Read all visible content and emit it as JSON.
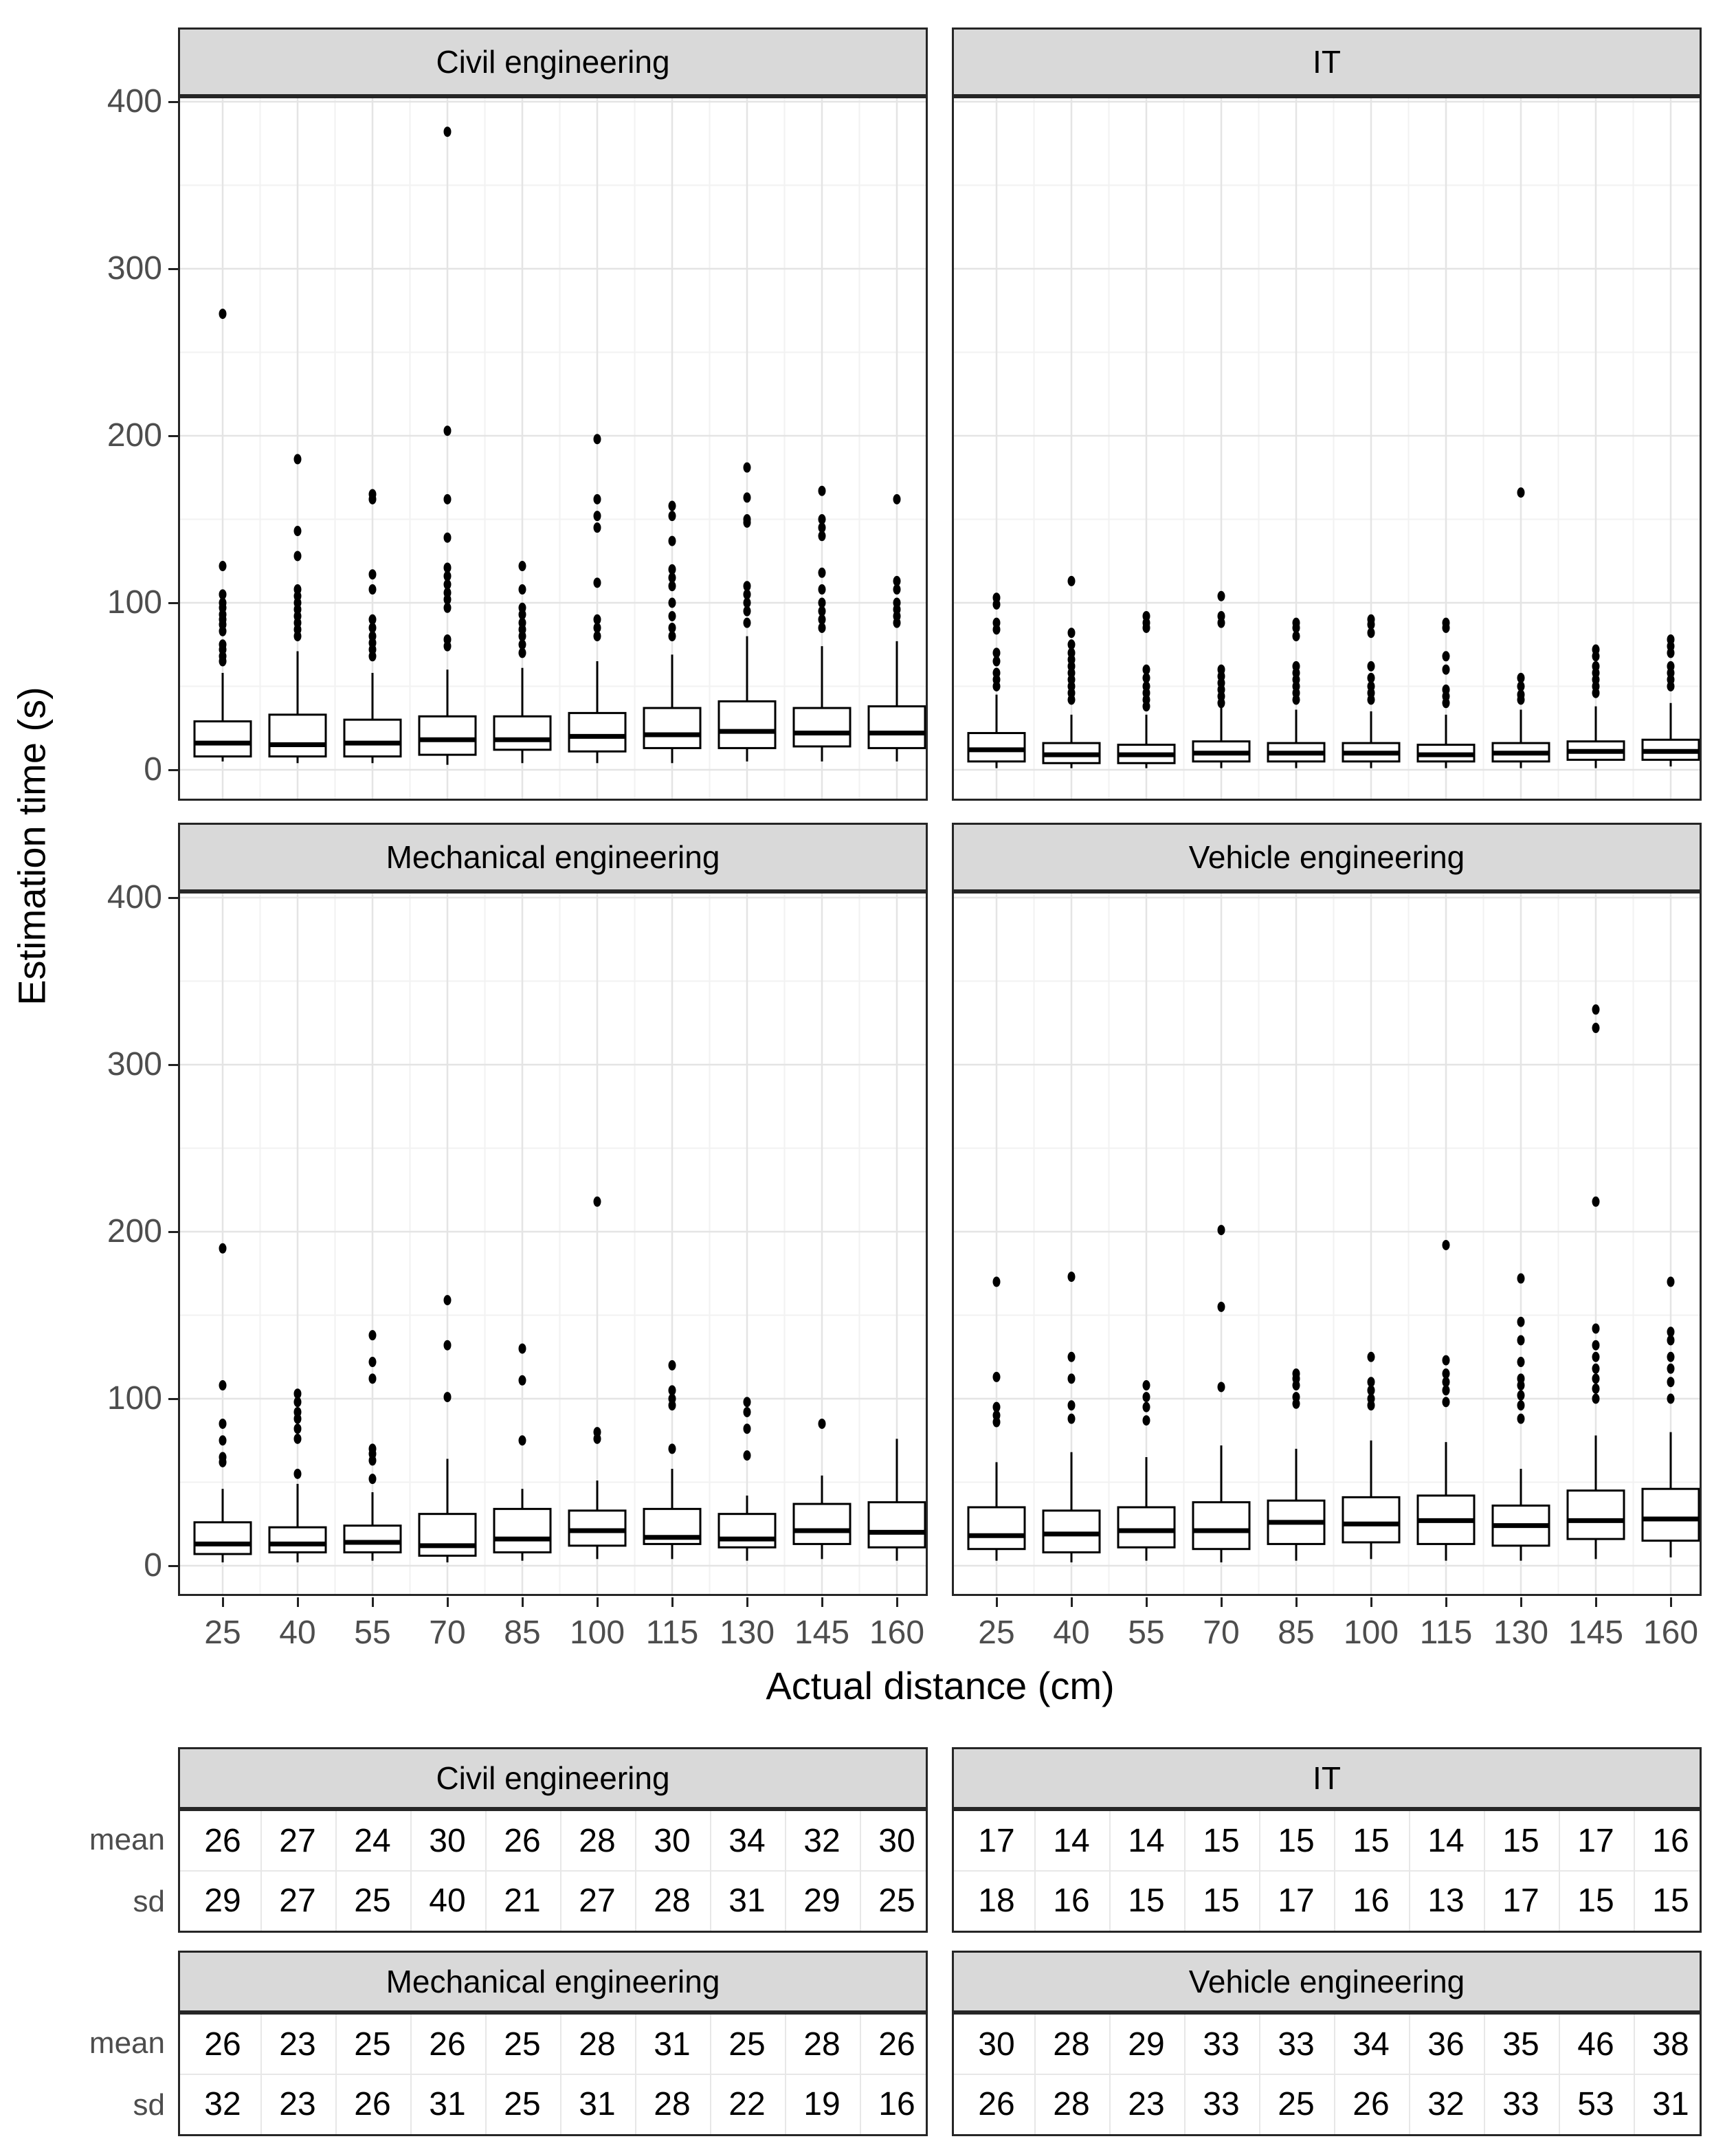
{
  "figure": {
    "y_axis_title": "Estimation time (s)",
    "x_axis_title": "Actual distance (cm)",
    "y_tick_labels": [
      "0",
      "100",
      "200",
      "300",
      "400"
    ],
    "x_tick_labels": [
      "25",
      "40",
      "55",
      "70",
      "85",
      "100",
      "115",
      "130",
      "145",
      "160"
    ]
  },
  "colors": {
    "strip_fill": "#d9d9d9",
    "panel_border": "#262626",
    "grid_major": "#e4e4e4",
    "grid_minor": "#f2f2f2",
    "tick_text": "#4d4d4d",
    "box_stroke": "#000000",
    "text": "#000000"
  },
  "chart_data": {
    "type": "boxplot",
    "facet_layout": [
      "Civil engineering",
      "IT",
      "Mechanical engineering",
      "Vehicle engineering"
    ],
    "x": [
      25,
      40,
      55,
      70,
      85,
      100,
      115,
      130,
      145,
      160
    ],
    "xlabel": "Actual distance (cm)",
    "ylabel": "Estimation time (s)",
    "ylim": [
      0,
      400
    ],
    "y_major_breaks": [
      0,
      100,
      200,
      300,
      400
    ],
    "y_minor_breaks": [
      50,
      150,
      250,
      350
    ],
    "grid": "on",
    "legend": "none",
    "panels": [
      {
        "title": "Civil engineering",
        "boxes": [
          {
            "x": 25,
            "q1": 8,
            "median": 16,
            "q3": 29,
            "whisker_low": 5,
            "whisker_high": 58,
            "outliers": [
              273,
              122,
              105,
              100,
              97,
              93,
              90,
              87,
              83,
              75,
              72,
              68,
              65
            ]
          },
          {
            "x": 40,
            "q1": 8,
            "median": 15,
            "q3": 33,
            "whisker_low": 4,
            "whisker_high": 71,
            "outliers": [
              186,
              143,
              128,
              108,
              104,
              100,
              96,
              92,
              88,
              84,
              80
            ]
          },
          {
            "x": 55,
            "q1": 8,
            "median": 16,
            "q3": 30,
            "whisker_low": 4,
            "whisker_high": 58,
            "outliers": [
              165,
              162,
              117,
              108,
              90,
              85,
              80,
              76,
              72,
              68
            ]
          },
          {
            "x": 70,
            "q1": 9,
            "median": 18,
            "q3": 32,
            "whisker_low": 3,
            "whisker_high": 60,
            "outliers": [
              382,
              203,
              162,
              139,
              121,
              116,
              111,
              106,
              102,
              97,
              78,
              74
            ]
          },
          {
            "x": 85,
            "q1": 12,
            "median": 18,
            "q3": 32,
            "whisker_low": 4,
            "whisker_high": 61,
            "outliers": [
              122,
              108,
              97,
              93,
              88,
              84,
              80,
              75,
              70
            ]
          },
          {
            "x": 100,
            "q1": 11,
            "median": 20,
            "q3": 34,
            "whisker_low": 4,
            "whisker_high": 65,
            "outliers": [
              198,
              162,
              152,
              145,
              112,
              90,
              85,
              80
            ]
          },
          {
            "x": 115,
            "q1": 13,
            "median": 21,
            "q3": 37,
            "whisker_low": 4,
            "whisker_high": 69,
            "outliers": [
              158,
              152,
              137,
              120,
              115,
              110,
              100,
              92,
              85,
              80
            ]
          },
          {
            "x": 130,
            "q1": 13,
            "median": 23,
            "q3": 41,
            "whisker_low": 5,
            "whisker_high": 80,
            "outliers": [
              181,
              163,
              150,
              148,
              110,
              105,
              100,
              95,
              88
            ]
          },
          {
            "x": 145,
            "q1": 14,
            "median": 22,
            "q3": 37,
            "whisker_low": 5,
            "whisker_high": 74,
            "outliers": [
              167,
              150,
              145,
              140,
              118,
              108,
              100,
              95,
              90,
              85
            ]
          },
          {
            "x": 160,
            "q1": 13,
            "median": 22,
            "q3": 38,
            "whisker_low": 5,
            "whisker_high": 77,
            "outliers": [
              162,
              113,
              108,
              100,
              96,
              92,
              88
            ]
          }
        ]
      },
      {
        "title": "IT",
        "boxes": [
          {
            "x": 25,
            "q1": 5,
            "median": 12,
            "q3": 22,
            "whisker_low": 1,
            "whisker_high": 45,
            "outliers": [
              103,
              99,
              88,
              84,
              70,
              65,
              58,
              54,
              50
            ]
          },
          {
            "x": 40,
            "q1": 4,
            "median": 9,
            "q3": 16,
            "whisker_low": 1,
            "whisker_high": 33,
            "outliers": [
              113,
              82,
              75,
              70,
              66,
              62,
              58,
              54,
              50,
              46,
              42
            ]
          },
          {
            "x": 55,
            "q1": 4,
            "median": 9,
            "q3": 15,
            "whisker_low": 1,
            "whisker_high": 33,
            "outliers": [
              92,
              88,
              85,
              60,
              55,
              50,
              46,
              42,
              38
            ]
          },
          {
            "x": 70,
            "q1": 5,
            "median": 10,
            "q3": 17,
            "whisker_low": 1,
            "whisker_high": 38,
            "outliers": [
              104,
              92,
              88,
              60,
              56,
              52,
              48,
              44,
              40
            ]
          },
          {
            "x": 85,
            "q1": 5,
            "median": 10,
            "q3": 16,
            "whisker_low": 1,
            "whisker_high": 36,
            "outliers": [
              88,
              85,
              80,
              62,
              58,
              54,
              50,
              46,
              42
            ]
          },
          {
            "x": 100,
            "q1": 5,
            "median": 10,
            "q3": 16,
            "whisker_low": 1,
            "whisker_high": 35,
            "outliers": [
              90,
              87,
              82,
              62,
              55,
              50,
              46,
              42
            ]
          },
          {
            "x": 115,
            "q1": 5,
            "median": 9,
            "q3": 15,
            "whisker_low": 1,
            "whisker_high": 33,
            "outliers": [
              88,
              85,
              68,
              60,
              48,
              44,
              40
            ]
          },
          {
            "x": 130,
            "q1": 5,
            "median": 10,
            "q3": 16,
            "whisker_low": 1,
            "whisker_high": 36,
            "outliers": [
              166,
              55,
              50,
              45,
              42
            ]
          },
          {
            "x": 145,
            "q1": 6,
            "median": 11,
            "q3": 17,
            "whisker_low": 1,
            "whisker_high": 38,
            "outliers": [
              72,
              68,
              62,
              58,
              54,
              50,
              46
            ]
          },
          {
            "x": 160,
            "q1": 6,
            "median": 11,
            "q3": 18,
            "whisker_low": 2,
            "whisker_high": 40,
            "outliers": [
              78,
              74,
              70,
              62,
              58,
              54,
              50
            ]
          }
        ]
      },
      {
        "title": "Mechanical engineering",
        "boxes": [
          {
            "x": 25,
            "q1": 7,
            "median": 13,
            "q3": 26,
            "whisker_low": 2,
            "whisker_high": 46,
            "outliers": [
              190,
              108,
              85,
              75,
              65,
              62
            ]
          },
          {
            "x": 40,
            "q1": 8,
            "median": 13,
            "q3": 23,
            "whisker_low": 2,
            "whisker_high": 49,
            "outliers": [
              103,
              98,
              92,
              88,
              82,
              76,
              55
            ]
          },
          {
            "x": 55,
            "q1": 8,
            "median": 14,
            "q3": 24,
            "whisker_low": 3,
            "whisker_high": 44,
            "outliers": [
              138,
              122,
              112,
              70,
              67,
              63,
              52
            ]
          },
          {
            "x": 70,
            "q1": 6,
            "median": 12,
            "q3": 31,
            "whisker_low": 2,
            "whisker_high": 64,
            "outliers": [
              159,
              132,
              101
            ]
          },
          {
            "x": 85,
            "q1": 8,
            "median": 16,
            "q3": 34,
            "whisker_low": 3,
            "whisker_high": 46,
            "outliers": [
              130,
              111,
              75
            ]
          },
          {
            "x": 100,
            "q1": 12,
            "median": 21,
            "q3": 33,
            "whisker_low": 4,
            "whisker_high": 51,
            "outliers": [
              218,
              80,
              76
            ]
          },
          {
            "x": 115,
            "q1": 13,
            "median": 17,
            "q3": 34,
            "whisker_low": 4,
            "whisker_high": 58,
            "outliers": [
              120,
              105,
              100,
              96,
              70
            ]
          },
          {
            "x": 130,
            "q1": 11,
            "median": 16,
            "q3": 31,
            "whisker_low": 3,
            "whisker_high": 42,
            "outliers": [
              98,
              92,
              82,
              66
            ]
          },
          {
            "x": 145,
            "q1": 13,
            "median": 21,
            "q3": 37,
            "whisker_low": 4,
            "whisker_high": 54,
            "outliers": [
              85
            ]
          },
          {
            "x": 160,
            "q1": 11,
            "median": 20,
            "q3": 38,
            "whisker_low": 3,
            "whisker_high": 76,
            "outliers": []
          }
        ]
      },
      {
        "title": "Vehicle engineering",
        "boxes": [
          {
            "x": 25,
            "q1": 10,
            "median": 18,
            "q3": 35,
            "whisker_low": 3,
            "whisker_high": 62,
            "outliers": [
              170,
              113,
              95,
              90,
              86
            ]
          },
          {
            "x": 40,
            "q1": 8,
            "median": 19,
            "q3": 33,
            "whisker_low": 2,
            "whisker_high": 68,
            "outliers": [
              173,
              125,
              112,
              96,
              88
            ]
          },
          {
            "x": 55,
            "q1": 11,
            "median": 21,
            "q3": 35,
            "whisker_low": 3,
            "whisker_high": 65,
            "outliers": [
              108,
              101,
              95,
              87
            ]
          },
          {
            "x": 70,
            "q1": 10,
            "median": 21,
            "q3": 38,
            "whisker_low": 2,
            "whisker_high": 72,
            "outliers": [
              201,
              155,
              107
            ]
          },
          {
            "x": 85,
            "q1": 13,
            "median": 26,
            "q3": 39,
            "whisker_low": 3,
            "whisker_high": 70,
            "outliers": [
              115,
              112,
              108,
              101,
              97
            ]
          },
          {
            "x": 100,
            "q1": 14,
            "median": 25,
            "q3": 41,
            "whisker_low": 4,
            "whisker_high": 75,
            "outliers": [
              125,
              110,
              105,
              100,
              96
            ]
          },
          {
            "x": 115,
            "q1": 13,
            "median": 27,
            "q3": 42,
            "whisker_low": 3,
            "whisker_high": 74,
            "outliers": [
              192,
              123,
              115,
              110,
              105,
              98
            ]
          },
          {
            "x": 130,
            "q1": 12,
            "median": 24,
            "q3": 36,
            "whisker_low": 3,
            "whisker_high": 58,
            "outliers": [
              172,
              146,
              135,
              122,
              112,
              108,
              102,
              96,
              88
            ]
          },
          {
            "x": 145,
            "q1": 16,
            "median": 27,
            "q3": 45,
            "whisker_low": 4,
            "whisker_high": 78,
            "outliers": [
              333,
              322,
              218,
              142,
              132,
              125,
              118,
              112,
              106,
              100
            ]
          },
          {
            "x": 160,
            "q1": 15,
            "median": 28,
            "q3": 46,
            "whisker_low": 5,
            "whisker_high": 80,
            "outliers": [
              170,
              140,
              135,
              125,
              118,
              110,
              100
            ]
          }
        ]
      }
    ]
  },
  "tables": {
    "row_labels": [
      "mean",
      "sd"
    ],
    "panels": [
      {
        "title": "Civil engineering",
        "mean": [
          26,
          27,
          24,
          30,
          26,
          28,
          30,
          34,
          32,
          30
        ],
        "sd": [
          29,
          27,
          25,
          40,
          21,
          27,
          28,
          31,
          29,
          25
        ]
      },
      {
        "title": "IT",
        "mean": [
          17,
          14,
          14,
          15,
          15,
          15,
          14,
          15,
          17,
          16
        ],
        "sd": [
          18,
          16,
          15,
          15,
          17,
          16,
          13,
          17,
          15,
          15
        ]
      },
      {
        "title": "Mechanical engineering",
        "mean": [
          26,
          23,
          25,
          26,
          25,
          28,
          31,
          25,
          28,
          26
        ],
        "sd": [
          32,
          23,
          26,
          31,
          25,
          31,
          28,
          22,
          19,
          16
        ]
      },
      {
        "title": "Vehicle engineering",
        "mean": [
          30,
          28,
          29,
          33,
          33,
          34,
          36,
          35,
          46,
          38
        ],
        "sd": [
          26,
          28,
          23,
          33,
          25,
          26,
          32,
          33,
          53,
          31
        ]
      }
    ]
  }
}
